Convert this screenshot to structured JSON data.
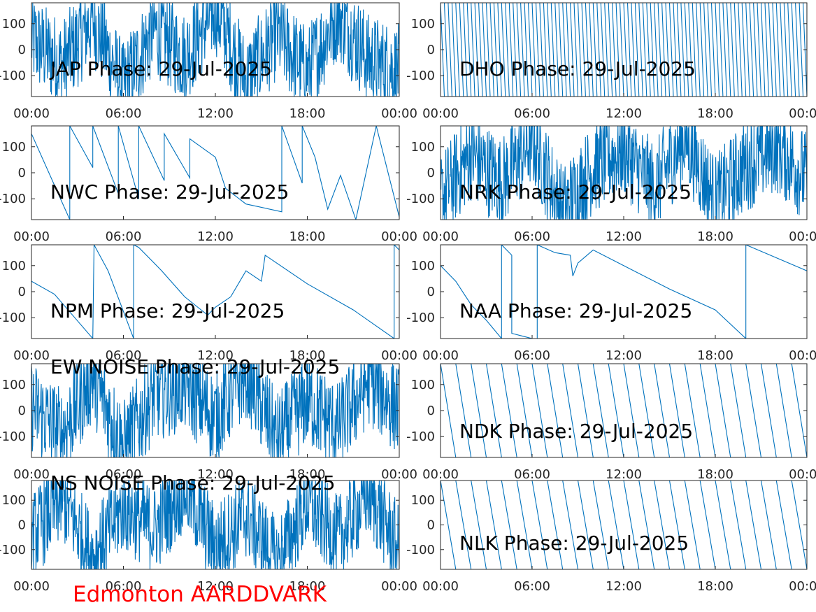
{
  "figure": {
    "footer": "Edmonton AARDDVARK",
    "footer_color": "#ff0000",
    "line_color": "#0072bd"
  },
  "chart_data": [
    {
      "type": "line",
      "title": "JAP Phase: 29-Jul-2025",
      "ylim": [
        -180,
        180
      ],
      "yticks": [
        -100,
        0,
        100
      ],
      "yticklabels": [
        "-100",
        "0",
        "100"
      ],
      "xlim": [
        "00:00",
        "24:00"
      ],
      "xticklabels": [
        "00:00",
        "06:00",
        "12:00",
        "18:00",
        "00:00"
      ],
      "grid": false,
      "pattern": "noise",
      "x": [
        "00:00",
        "02:00",
        "04:00",
        "06:00",
        "08:00",
        "10:00",
        "12:00",
        "14:00",
        "16:00",
        "18:00",
        "20:00",
        "22:00",
        "24:00"
      ],
      "y": [
        40,
        -60,
        120,
        -150,
        80,
        -30,
        160,
        -120,
        60,
        -90,
        140,
        -40,
        -80
      ]
    },
    {
      "type": "line",
      "title": "DHO Phase: 29-Jul-2025",
      "ylim": [
        -180,
        180
      ],
      "yticks": [
        -100,
        0,
        100
      ],
      "yticklabels": [
        "-100",
        "0",
        "100"
      ],
      "xlim": [
        "00:00",
        "24:00"
      ],
      "xticklabels": [
        "00:00",
        "06:00",
        "12:00",
        "18:00",
        "00:00"
      ],
      "grid": false,
      "pattern": "fast-wrap",
      "x": [
        "00:00",
        "00:15",
        "00:30"
      ],
      "y": [
        180,
        0,
        -180
      ]
    },
    {
      "type": "line",
      "title": "NWC Phase: 29-Jul-2025",
      "ylim": [
        -180,
        180
      ],
      "yticks": [
        -100,
        0,
        100
      ],
      "yticklabels": [
        "-100",
        "0",
        "100"
      ],
      "xlim": [
        "00:00",
        "24:00"
      ],
      "xticklabels": [
        "00:00",
        "06:00",
        "12:00",
        "18:00",
        "00:00"
      ],
      "grid": false,
      "pattern": "segments",
      "x": [
        "00:00",
        "02:30",
        "02:30",
        "04:00",
        "04:00",
        "05:40",
        "05:40",
        "07:00",
        "07:00",
        "08:40",
        "08:40",
        "10:20",
        "10:20",
        "12:00",
        "12:40",
        "14:00",
        "16:20",
        "16:20",
        "17:40",
        "17:40",
        "18:30",
        "19:20",
        "20:10",
        "21:10",
        "22:30",
        "24:00"
      ],
      "y": [
        150,
        -180,
        180,
        20,
        180,
        -80,
        180,
        -100,
        180,
        -30,
        150,
        -20,
        130,
        60,
        -60,
        -120,
        -150,
        180,
        -40,
        180,
        60,
        -140,
        -10,
        -180,
        180,
        -170
      ]
    },
    {
      "type": "line",
      "title": "NRK Phase: 29-Jul-2025",
      "ylim": [
        -180,
        180
      ],
      "yticks": [
        -100,
        0,
        100
      ],
      "yticklabels": [
        "-100",
        "0",
        "100"
      ],
      "xlim": [
        "00:00",
        "24:00"
      ],
      "xticklabels": [
        "00:00",
        "06:00",
        "12:00",
        "18:00",
        "00:00"
      ],
      "grid": false,
      "pattern": "noise",
      "x": [
        "00:00",
        "02:00",
        "04:00",
        "06:00",
        "08:00",
        "10:00",
        "12:00",
        "14:00",
        "16:00",
        "18:00",
        "20:00",
        "22:00",
        "24:00"
      ],
      "y": [
        -100,
        70,
        -40,
        130,
        -150,
        20,
        90,
        -60,
        140,
        -110,
        30,
        100,
        -20
      ]
    },
    {
      "type": "line",
      "title": "NPM Phase: 29-Jul-2025",
      "ylim": [
        -180,
        180
      ],
      "yticks": [
        -100,
        0,
        100
      ],
      "yticklabels": [
        "-100",
        "0",
        "100"
      ],
      "xlim": [
        "00:00",
        "24:00"
      ],
      "xticklabels": [
        "00:00",
        "06:00",
        "12:00",
        "18:00",
        "00:00"
      ],
      "grid": false,
      "pattern": "segments",
      "x": [
        "00:00",
        "01:30",
        "04:00",
        "04:05",
        "05:00",
        "06:40",
        "06:40",
        "07:00",
        "08:30",
        "10:00",
        "11:30",
        "12:00",
        "13:00",
        "14:00",
        "15:00",
        "15:15",
        "18:00",
        "21:00",
        "23:40",
        "23:40",
        "24:00"
      ],
      "y": [
        40,
        -10,
        -180,
        180,
        80,
        -180,
        180,
        170,
        80,
        -20,
        -90,
        -60,
        -20,
        80,
        40,
        140,
        30,
        -70,
        -180,
        180,
        160
      ]
    },
    {
      "type": "line",
      "title": "NAA Phase: 29-Jul-2025",
      "ylim": [
        -180,
        180
      ],
      "yticks": [
        -100,
        0,
        100
      ],
      "yticklabels": [
        "-100",
        "0",
        "100"
      ],
      "xlim": [
        "00:00",
        "24:00"
      ],
      "xticklabels": [
        "00:00",
        "06:00",
        "12:00",
        "18:00",
        "00:00"
      ],
      "grid": false,
      "pattern": "segments",
      "x": [
        "00:00",
        "01:00",
        "02:00",
        "03:00",
        "04:00",
        "04:00",
        "04:40",
        "04:40",
        "05:20",
        "06:00",
        "06:20",
        "06:20",
        "07:30",
        "08:30",
        "08:40",
        "09:00",
        "10:00",
        "12:00",
        "15:00",
        "18:00",
        "20:00",
        "20:00",
        "24:00"
      ],
      "y": [
        100,
        40,
        -50,
        -110,
        -180,
        180,
        140,
        -160,
        -170,
        -180,
        -180,
        180,
        150,
        140,
        60,
        110,
        160,
        100,
        10,
        -70,
        -180,
        180,
        80
      ]
    },
    {
      "type": "line",
      "title": "EW NOISE Phase: 29-Jul-2025",
      "ylim": [
        -180,
        180
      ],
      "yticks": [
        -100,
        0,
        100
      ],
      "yticklabels": [
        "-100",
        "0",
        "100"
      ],
      "xlim": [
        "00:00",
        "24:00"
      ],
      "xticklabels": [
        "00:00",
        "06:00",
        "12:00",
        "18:00",
        "00:00"
      ],
      "grid": false,
      "pattern": "noise",
      "x": [
        "00:00",
        "02:00",
        "04:00",
        "06:00",
        "08:00",
        "10:00",
        "12:00",
        "14:00",
        "16:00",
        "18:00",
        "20:00",
        "22:00",
        "24:00"
      ],
      "y": [
        20,
        -90,
        130,
        -140,
        60,
        100,
        -30,
        150,
        -110,
        40,
        -70,
        120,
        0
      ]
    },
    {
      "type": "line",
      "title": "NDK Phase: 29-Jul-2025",
      "ylim": [
        -180,
        180
      ],
      "yticks": [
        -100,
        0,
        100
      ],
      "yticklabels": [
        "-100",
        "0",
        "100"
      ],
      "xlim": [
        "00:00",
        "24:00"
      ],
      "xticklabels": [
        "00:00",
        "06:00",
        "12:00",
        "18:00",
        "00:00"
      ],
      "grid": false,
      "pattern": "sawtooth",
      "x": [
        "00:00",
        "01:00"
      ],
      "y": [
        180,
        -180
      ]
    },
    {
      "type": "line",
      "title": "NS NOISE Phase: 29-Jul-2025",
      "ylim": [
        -180,
        180
      ],
      "yticks": [
        -100,
        0,
        100
      ],
      "yticklabels": [
        "-100",
        "0",
        "100"
      ],
      "xlim": [
        "00:00",
        "24:00"
      ],
      "xticklabels": [
        "00:00",
        "06:00",
        "12:00",
        "18:00",
        "00:00"
      ],
      "grid": false,
      "pattern": "noise",
      "x": [
        "00:00",
        "02:00",
        "04:00",
        "06:00",
        "08:00",
        "10:00",
        "12:00",
        "14:00",
        "16:00",
        "18:00",
        "20:00",
        "22:00",
        "24:00"
      ],
      "y": [
        -50,
        110,
        -130,
        70,
        -20,
        150,
        -90,
        40,
        -150,
        90,
        -60,
        130,
        -100
      ]
    },
    {
      "type": "line",
      "title": "NLK Phase: 29-Jul-2025",
      "ylim": [
        -180,
        180
      ],
      "yticks": [
        -100,
        0,
        100
      ],
      "yticklabels": [
        "-100",
        "0",
        "100"
      ],
      "xlim": [
        "00:00",
        "24:00"
      ],
      "xticklabels": [
        "00:00",
        "06:00",
        "12:00",
        "18:00",
        "00:00"
      ],
      "grid": false,
      "pattern": "sawtooth",
      "x": [
        "00:00",
        "01:00"
      ],
      "y": [
        180,
        -180
      ]
    }
  ]
}
